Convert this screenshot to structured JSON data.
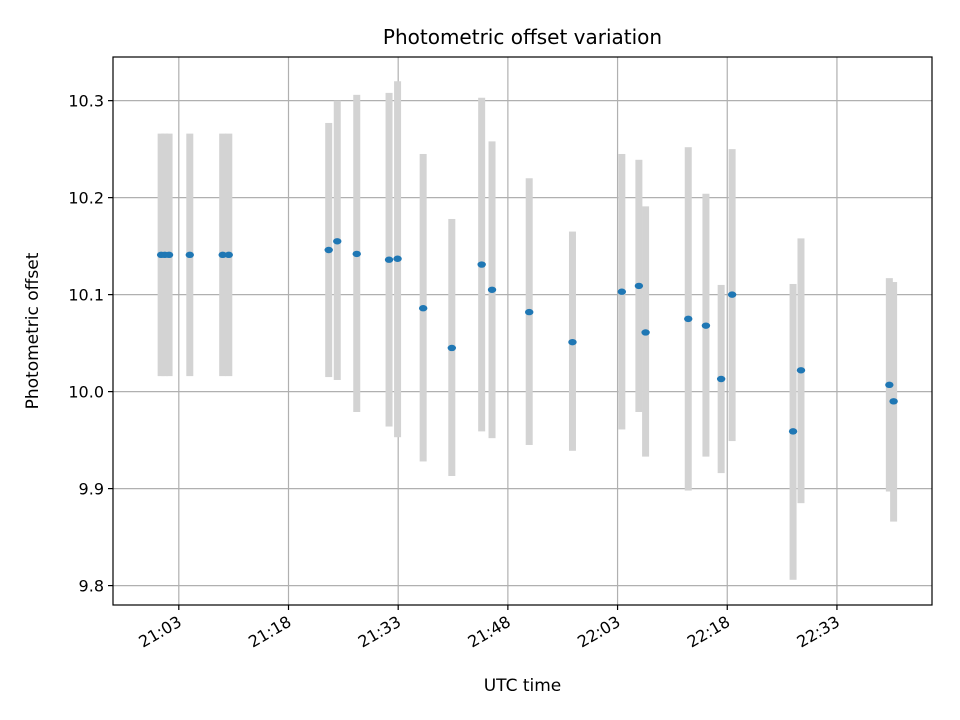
{
  "chart_data": {
    "type": "scatter",
    "title": "Photometric offset variation",
    "xlabel": "UTC time",
    "ylabel": "Photometric offset",
    "x_axis_format": "time HH:MM",
    "xlim": [
      "20:54",
      "22:46"
    ],
    "ylim": [
      9.78,
      10.345
    ],
    "grid": true,
    "x_ticks": [
      "21:03",
      "21:18",
      "21:33",
      "21:48",
      "22:03",
      "22:18",
      "22:33"
    ],
    "y_ticks": [
      "9.8",
      "9.9",
      "10.0",
      "10.1",
      "10.2",
      "10.3"
    ],
    "marker_color": "#1f77b4",
    "errorbar_color": "#d3d3d3",
    "points": [
      {
        "x": "21:00:35",
        "y": 10.141,
        "ylow": 10.016,
        "yhigh": 10.266
      },
      {
        "x": "21:01:05",
        "y": 10.141,
        "ylow": 10.016,
        "yhigh": 10.266
      },
      {
        "x": "21:01:40",
        "y": 10.141,
        "ylow": 10.016,
        "yhigh": 10.266
      },
      {
        "x": "21:04:30",
        "y": 10.141,
        "ylow": 10.016,
        "yhigh": 10.266
      },
      {
        "x": "21:09:00",
        "y": 10.141,
        "ylow": 10.016,
        "yhigh": 10.266
      },
      {
        "x": "21:09:50",
        "y": 10.141,
        "ylow": 10.016,
        "yhigh": 10.266
      },
      {
        "x": "21:23:30",
        "y": 10.146,
        "ylow": 10.015,
        "yhigh": 10.277
      },
      {
        "x": "21:24:40",
        "y": 10.155,
        "ylow": 10.012,
        "yhigh": 10.3
      },
      {
        "x": "21:27:20",
        "y": 10.142,
        "ylow": 9.979,
        "yhigh": 10.306
      },
      {
        "x": "21:31:45",
        "y": 10.136,
        "ylow": 9.964,
        "yhigh": 10.308
      },
      {
        "x": "21:32:55",
        "y": 10.137,
        "ylow": 9.953,
        "yhigh": 10.32
      },
      {
        "x": "21:36:25",
        "y": 10.086,
        "ylow": 9.928,
        "yhigh": 10.245
      },
      {
        "x": "21:40:20",
        "y": 10.045,
        "ylow": 9.913,
        "yhigh": 10.178
      },
      {
        "x": "21:44:25",
        "y": 10.131,
        "ylow": 9.959,
        "yhigh": 10.303
      },
      {
        "x": "21:45:50",
        "y": 10.105,
        "ylow": 9.952,
        "yhigh": 10.258
      },
      {
        "x": "21:50:55",
        "y": 10.082,
        "ylow": 9.945,
        "yhigh": 10.22
      },
      {
        "x": "21:56:50",
        "y": 10.051,
        "ylow": 9.939,
        "yhigh": 10.165
      },
      {
        "x": "22:03:35",
        "y": 10.103,
        "ylow": 9.961,
        "yhigh": 10.245
      },
      {
        "x": "22:05:55",
        "y": 10.109,
        "ylow": 9.979,
        "yhigh": 10.239
      },
      {
        "x": "22:06:50",
        "y": 10.061,
        "ylow": 9.933,
        "yhigh": 10.191
      },
      {
        "x": "22:12:40",
        "y": 10.075,
        "ylow": 9.898,
        "yhigh": 10.252
      },
      {
        "x": "22:15:05",
        "y": 10.068,
        "ylow": 9.933,
        "yhigh": 10.204
      },
      {
        "x": "22:17:10",
        "y": 10.013,
        "ylow": 9.916,
        "yhigh": 10.11
      },
      {
        "x": "22:18:40",
        "y": 10.1,
        "ylow": 9.949,
        "yhigh": 10.25
      },
      {
        "x": "22:27:00",
        "y": 9.959,
        "ylow": 9.806,
        "yhigh": 10.111
      },
      {
        "x": "22:28:05",
        "y": 10.022,
        "ylow": 9.885,
        "yhigh": 10.158
      },
      {
        "x": "22:40:10",
        "y": 10.007,
        "ylow": 9.897,
        "yhigh": 10.117
      },
      {
        "x": "22:40:45",
        "y": 9.99,
        "ylow": 9.866,
        "yhigh": 10.113
      }
    ]
  }
}
